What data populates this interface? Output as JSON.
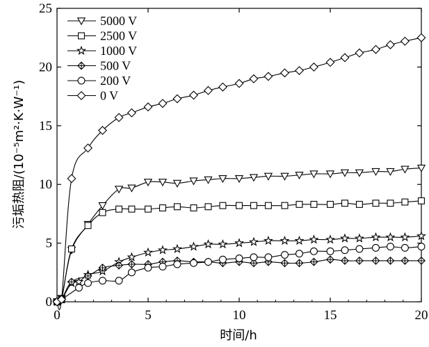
{
  "chart_data": {
    "type": "line",
    "xlabel": "时间/h",
    "ylabel": "污垢热阻/(10⁻⁵m²·K·W⁻¹)",
    "xlim": [
      0,
      20
    ],
    "ylim": [
      0,
      25
    ],
    "xticks": [
      "0",
      "5",
      "10",
      "15",
      "20"
    ],
    "yticks": [
      "0",
      "5",
      "10",
      "15",
      "20",
      "25"
    ],
    "grid": false,
    "legend_position": "top-left",
    "series": [
      {
        "name": "5000 V",
        "marker": "triangle-down",
        "x": [
          0,
          0.25,
          0.8,
          1.7,
          2.5,
          3.4,
          4.1,
          5.0,
          5.8,
          6.6,
          7.5,
          8.3,
          9.1,
          10.0,
          10.8,
          11.6,
          12.5,
          13.3,
          14.1,
          15.0,
          15.8,
          16.6,
          17.5,
          18.3,
          19.1,
          20.0
        ],
        "y": [
          0,
          0.3,
          4.4,
          6.6,
          8.2,
          9.6,
          9.7,
          10.2,
          10.2,
          10.1,
          10.3,
          10.4,
          10.5,
          10.5,
          10.6,
          10.7,
          10.7,
          10.8,
          10.9,
          10.9,
          11.0,
          11.0,
          11.1,
          11.1,
          11.3,
          11.4
        ]
      },
      {
        "name": "2500 V",
        "marker": "square",
        "x": [
          0,
          0.25,
          0.8,
          1.7,
          2.5,
          3.4,
          4.1,
          5.0,
          5.8,
          6.6,
          7.5,
          8.3,
          9.1,
          10.0,
          10.8,
          11.6,
          12.5,
          13.3,
          14.1,
          15.0,
          15.8,
          16.6,
          17.5,
          18.3,
          19.1,
          20.0
        ],
        "y": [
          0,
          0.2,
          4.5,
          6.5,
          7.6,
          7.9,
          7.9,
          7.9,
          8.0,
          8.1,
          8.0,
          8.1,
          8.2,
          8.2,
          8.2,
          8.2,
          8.2,
          8.3,
          8.3,
          8.3,
          8.4,
          8.3,
          8.4,
          8.4,
          8.5,
          8.6
        ]
      },
      {
        "name": "1000 V",
        "marker": "star",
        "x": [
          0,
          0.25,
          0.8,
          1.2,
          1.7,
          2.5,
          3.4,
          4.1,
          5.0,
          5.8,
          6.6,
          7.5,
          8.3,
          9.1,
          10.0,
          10.8,
          11.6,
          12.5,
          13.3,
          14.1,
          15.0,
          15.8,
          16.6,
          17.5,
          18.3,
          19.1,
          20.0
        ],
        "y": [
          0,
          0.2,
          1.6,
          1.7,
          2.3,
          2.6,
          3.4,
          3.8,
          4.2,
          4.4,
          4.5,
          4.7,
          4.9,
          4.9,
          5.0,
          5.1,
          5.2,
          5.2,
          5.2,
          5.3,
          5.3,
          5.4,
          5.4,
          5.5,
          5.5,
          5.5,
          5.6
        ]
      },
      {
        "name": "500 V",
        "marker": "diamond-plus",
        "x": [
          0,
          0.25,
          0.8,
          1.7,
          2.5,
          3.4,
          4.1,
          5.0,
          5.8,
          6.6,
          7.5,
          8.3,
          9.1,
          10.0,
          10.8,
          11.6,
          12.5,
          13.3,
          14.1,
          15.0,
          15.8,
          16.6,
          17.5,
          18.3,
          19.1,
          20.0
        ],
        "y": [
          0,
          0.2,
          1.7,
          2.2,
          2.9,
          3.1,
          3.2,
          3.2,
          3.4,
          3.5,
          3.4,
          3.4,
          3.3,
          3.4,
          3.3,
          3.4,
          3.3,
          3.3,
          3.4,
          3.6,
          3.5,
          3.5,
          3.5,
          3.5,
          3.5,
          3.5
        ]
      },
      {
        "name": "200 V",
        "marker": "circle",
        "x": [
          0,
          0.25,
          1.2,
          1.7,
          2.5,
          3.4,
          4.1,
          5.0,
          5.8,
          6.6,
          7.5,
          8.3,
          9.1,
          10.0,
          10.8,
          11.6,
          12.5,
          13.3,
          14.1,
          15.0,
          15.8,
          16.6,
          17.5,
          18.3,
          19.1,
          20.0
        ],
        "y": [
          0,
          0.2,
          1.2,
          1.6,
          1.8,
          1.8,
          2.5,
          2.9,
          3.0,
          3.2,
          3.3,
          3.4,
          3.6,
          3.7,
          3.8,
          3.8,
          4.0,
          4.1,
          4.3,
          4.3,
          4.4,
          4.5,
          4.6,
          4.7,
          4.6,
          4.7
        ]
      },
      {
        "name": "0 V",
        "marker": "diamond",
        "x": [
          0,
          0.25,
          0.8,
          1.7,
          2.5,
          3.4,
          4.1,
          5.0,
          5.8,
          6.6,
          7.5,
          8.3,
          9.1,
          10.0,
          10.8,
          11.6,
          12.5,
          13.3,
          14.1,
          15.0,
          15.8,
          16.6,
          17.5,
          18.3,
          19.1,
          20.0
        ],
        "y": [
          0,
          0.2,
          10.5,
          13.1,
          14.6,
          15.7,
          16.1,
          16.6,
          16.9,
          17.3,
          17.6,
          18.0,
          18.3,
          18.6,
          19.0,
          19.2,
          19.5,
          19.7,
          20.0,
          20.4,
          20.8,
          21.2,
          21.5,
          21.9,
          22.2,
          22.5
        ]
      }
    ]
  }
}
